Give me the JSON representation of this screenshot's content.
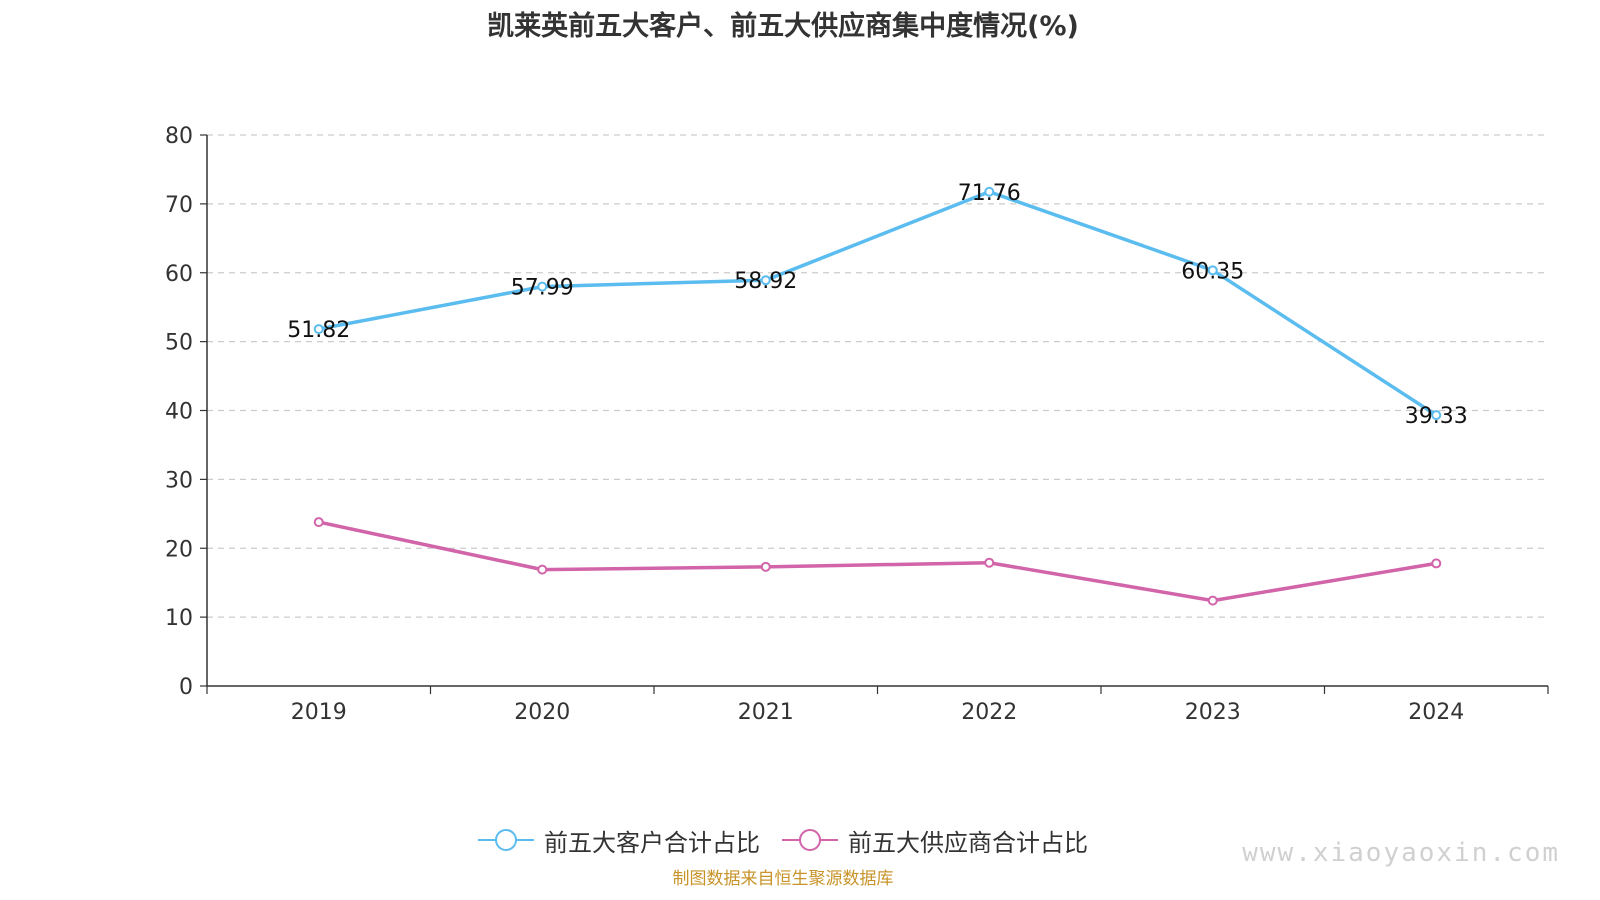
{
  "chart_data": {
    "type": "line",
    "title": "凯莱英前五大客户、前五大供应商集中度情况(%)",
    "categories": [
      "2019",
      "2020",
      "2021",
      "2022",
      "2023",
      "2024"
    ],
    "ylim": [
      0,
      80
    ],
    "yticks": [
      0,
      10,
      20,
      30,
      40,
      50,
      60,
      70,
      80
    ],
    "grid": true,
    "legend_position": "bottom",
    "series": [
      {
        "name": "前五大客户合计占比",
        "color": "#5bbcef",
        "values": [
          51.82,
          57.99,
          58.92,
          71.76,
          60.35,
          39.33
        ],
        "data_labels": [
          "51.82",
          "57.99",
          "58.92",
          "71.76",
          "60.35",
          "39.33"
        ]
      },
      {
        "name": "前五大供应商合计占比",
        "color": "#d264a9",
        "values": [
          23.8,
          16.9,
          17.3,
          17.9,
          12.4,
          17.8
        ],
        "data_labels": []
      }
    ]
  },
  "footer": {
    "source": "制图数据来自恒生聚源数据库",
    "watermark": "www.xiaoyaoxin.com"
  }
}
